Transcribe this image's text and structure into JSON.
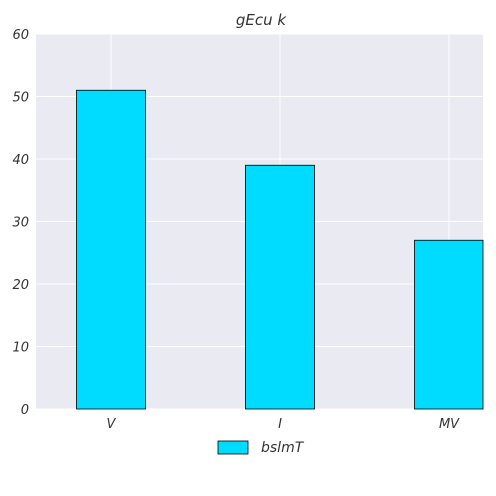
{
  "chart_data": {
    "type": "bar",
    "title": "gEcu k",
    "categories": [
      "V",
      "I",
      "MV"
    ],
    "series": [
      {
        "name": "bslmT",
        "values": [
          51,
          39,
          27
        ],
        "color": "#00dcff"
      }
    ],
    "xlabel": "",
    "ylabel": "",
    "ylim": [
      0,
      60
    ],
    "yticks": [
      0,
      10,
      20,
      30,
      40,
      50,
      60
    ],
    "grid": true,
    "legend_position": "bottom-center",
    "background_color": "#eaeaf2",
    "grid_color": "#ffffff",
    "edge_color": "#000000"
  }
}
